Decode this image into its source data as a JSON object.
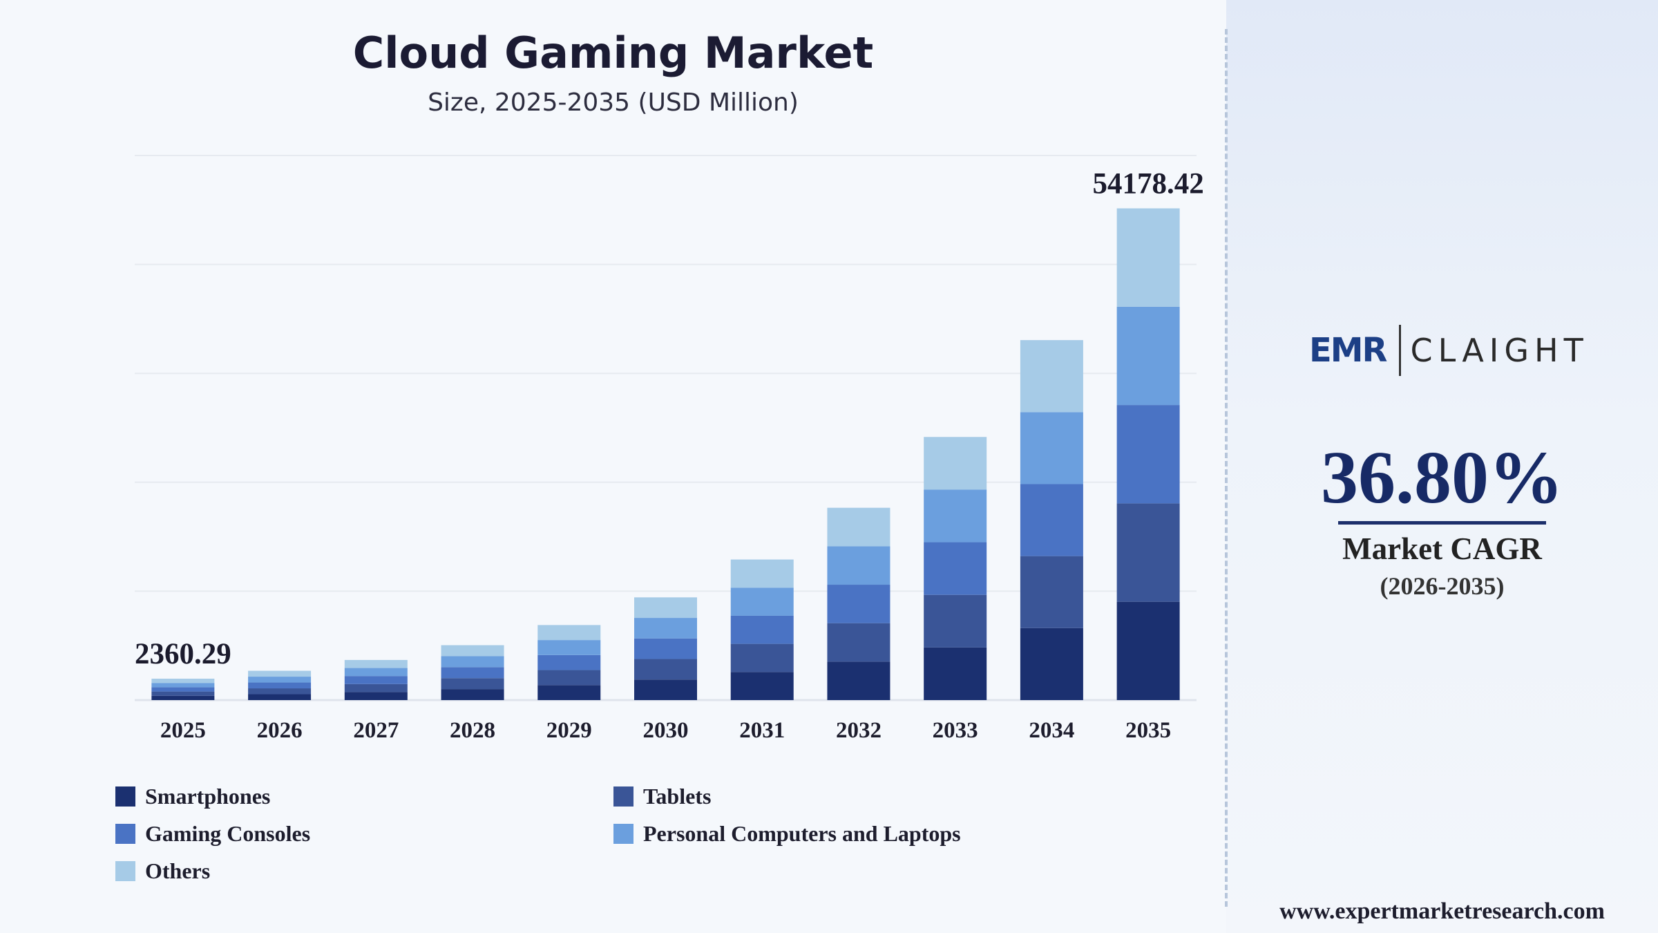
{
  "header": {
    "title": "Cloud Gaming Market",
    "subtitle": "Size, 2025-2035 (USD Million)"
  },
  "branding": {
    "logo_left": "EMR",
    "logo_right": "CLAIGHT",
    "website": "www.expertmarketresearch.com"
  },
  "cagr": {
    "value": "36.80%",
    "label": "Market CAGR",
    "period": "(2026-2035)"
  },
  "chart_data": {
    "type": "bar",
    "stacked": true,
    "categories": [
      "2025",
      "2026",
      "2027",
      "2028",
      "2029",
      "2030",
      "2031",
      "2032",
      "2033",
      "2034",
      "2035"
    ],
    "totals": [
      2360.29,
      3230,
      4420,
      6050,
      8270,
      11320,
      15490,
      21190,
      28990,
      39660,
      54178.42
    ],
    "data_labels": [
      {
        "category": "2025",
        "text": "2360.29"
      },
      {
        "category": "2035",
        "text": "54178.42"
      }
    ],
    "series": [
      {
        "name": "Smartphones",
        "color": "#1b3070",
        "values": [
          472.06,
          646,
          884,
          1210,
          1654,
          2264,
          3098,
          4238,
          5798,
          7932,
          10835.68
        ]
      },
      {
        "name": "Tablets",
        "color": "#3a5597",
        "values": [
          472.06,
          646,
          884,
          1210,
          1654,
          2264,
          3098,
          4238,
          5798,
          7932,
          10835.68
        ]
      },
      {
        "name": "Gaming Consoles",
        "color": "#4a73c4",
        "values": [
          472.06,
          646,
          884,
          1210,
          1654,
          2264,
          3098,
          4238,
          5798,
          7932,
          10835.69
        ]
      },
      {
        "name": "Personal Computers and Laptops",
        "color": "#6b9fde",
        "values": [
          472.06,
          646,
          884,
          1210,
          1654,
          2264,
          3098,
          4238,
          5798,
          7932,
          10835.69
        ]
      },
      {
        "name": "Others",
        "color": "#a6cbe7",
        "values": [
          472.05,
          646,
          884,
          1210,
          1654,
          2264,
          3098,
          4238,
          5798,
          7932,
          10835.68
        ]
      }
    ],
    "ylim": [
      0,
      60000
    ],
    "grid": true,
    "legend_position": "bottom-left"
  }
}
